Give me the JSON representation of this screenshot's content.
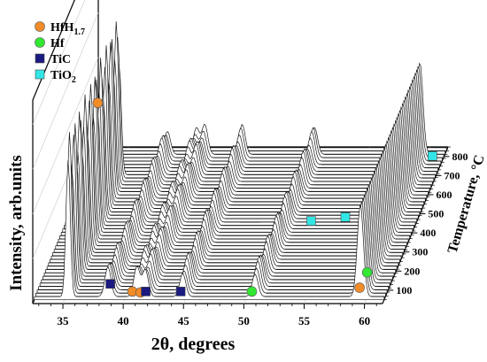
{
  "chart_data": {
    "type": "line",
    "subtype": "3d-waterfall-xrd",
    "xlabel": "2θ, degrees",
    "ylabel": "Intensity, arb.units",
    "zlabel": "Temperature, °C",
    "x_ticks": [
      35,
      40,
      45,
      50,
      55,
      60
    ],
    "xlim": [
      32.5,
      61.5
    ],
    "z_ticks": [
      100,
      200,
      300,
      400,
      500,
      600,
      700,
      800
    ],
    "zlim": [
      30,
      850
    ],
    "scan_count": 45,
    "grid": true,
    "legend_position": "top-left",
    "legend": [
      {
        "label_main": "HfH",
        "label_sub": "1.7",
        "marker": "circle",
        "color": "#F28C28"
      },
      {
        "label_main": "Hf",
        "label_sub": "",
        "marker": "circle",
        "color": "#33E833"
      },
      {
        "label_main": "TiC",
        "label_sub": "",
        "marker": "square",
        "color": "#1A1A80"
      },
      {
        "label_main": "TiO",
        "label_sub": "2",
        "marker": "square",
        "color": "#33E6E6"
      }
    ],
    "peaks": [
      {
        "phase": "HfH1.7",
        "two_theta": 35.3,
        "t_end": 700
      },
      {
        "phase": "TiC",
        "two_theta": 38.6,
        "t_end": 800
      },
      {
        "phase": "HfH1.7",
        "two_theta": 41.0,
        "t_end": 800
      },
      {
        "phase": "TiC",
        "two_theta": 41.7,
        "t_end": 800
      },
      {
        "phase": "TiC",
        "two_theta": 44.8,
        "t_end": 800
      },
      {
        "phase": "Hf",
        "two_theta": 50.8,
        "t_end": 800
      },
      {
        "phase": "HfH1.7",
        "two_theta": 59.5,
        "t_end": 800
      },
      {
        "phase": "Hf",
        "two_theta": 59.6,
        "t_end": 800
      }
    ],
    "markers": [
      {
        "phase": "HfH1.7",
        "two_theta": 35.3,
        "temperature": 420,
        "shape": "circle",
        "color": "#F28C28"
      },
      {
        "phase": "TiC",
        "two_theta": 38.6,
        "temperature": 80,
        "shape": "square",
        "color": "#1A1A80"
      },
      {
        "phase": "HfH1.7",
        "two_theta": 40.7,
        "temperature": 40,
        "shape": "circle",
        "color": "#F28C28"
      },
      {
        "phase": "HfH1.7",
        "two_theta": 41.4,
        "temperature": 35,
        "shape": "circle",
        "color": "#F28C28"
      },
      {
        "phase": "TiC",
        "two_theta": 41.8,
        "temperature": 40,
        "shape": "square",
        "color": "#1A1A80"
      },
      {
        "phase": "TiC",
        "two_theta": 44.7,
        "temperature": 40,
        "shape": "square",
        "color": "#1A1A80"
      },
      {
        "phase": "Hf",
        "two_theta": 50.6,
        "temperature": 40,
        "shape": "circle",
        "color": "#33E833"
      },
      {
        "phase": "HfH1.7",
        "two_theta": 59.4,
        "temperature": 60,
        "shape": "circle",
        "color": "#F28C28"
      },
      {
        "phase": "Hf",
        "two_theta": 59.5,
        "temperature": 140,
        "shape": "circle",
        "color": "#33E833"
      },
      {
        "phase": "TiO2",
        "two_theta": 53.0,
        "temperature": 420,
        "shape": "square",
        "color": "#33E6E6"
      },
      {
        "phase": "TiO2",
        "two_theta": 55.7,
        "temperature": 440,
        "shape": "square",
        "color": "#33E6E6"
      },
      {
        "phase": "TiO2",
        "two_theta": 60.8,
        "temperature": 760,
        "shape": "square",
        "color": "#33E6E6"
      }
    ]
  }
}
